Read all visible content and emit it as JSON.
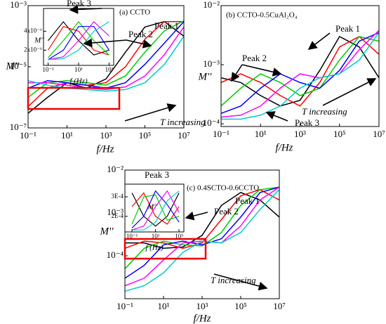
{
  "chart_data": [
    {
      "type": "line",
      "xscale": "log",
      "yscale": "log",
      "x_label": "f/Hz",
      "y_label": "M''",
      "annotations": [
        "(a) CCTO",
        "Peak 1",
        "Peak 2",
        "Peak 3",
        "T increasing"
      ],
      "x": [
        0.1,
        1,
        10,
        100,
        1000,
        10000,
        100000,
        1000000,
        10000000
      ],
      "xlim": [
        0.1,
        10000000
      ],
      "xticks": [
        {
          "value": 0.1,
          "label": "10⁻¹"
        },
        {
          "value": 10,
          "label": "10¹"
        },
        {
          "value": 1000,
          "label": "10³"
        },
        {
          "value": 100000,
          "label": "10⁵"
        },
        {
          "value": 10000000,
          "label": "10⁷"
        }
      ],
      "ylim": [
        1e-07,
        0.001
      ],
      "yticks": [
        {
          "value": 1e-07,
          "label": "10⁻⁷"
        },
        {
          "value": 1e-05,
          "label": "10⁻⁵"
        },
        {
          "value": 0.001,
          "label": "10⁻³"
        }
      ],
      "series": [
        {
          "color": "#000000",
          "values": [
            3e-07,
            1e-06,
            3e-06,
            2e-06,
            4e-06,
            3e-05,
            0.0002,
            0.0003,
            0.0001
          ]
        },
        {
          "color": "#ff0000",
          "values": [
            5e-07,
            2e-06,
            3e-06,
            2.5e-06,
            3e-06,
            1e-05,
            8e-05,
            0.0003,
            0.0003
          ]
        },
        {
          "color": "#00cc00",
          "values": [
            1e-06,
            3e-06,
            3.5e-06,
            3e-06,
            2.5e-06,
            5e-06,
            3e-05,
            0.00015,
            0.00032
          ]
        },
        {
          "color": "#0000ff",
          "values": [
            2e-06,
            3.5e-06,
            3e-06,
            2.5e-06,
            2e-06,
            3e-06,
            1.2e-05,
            6e-05,
            0.0003
          ]
        },
        {
          "color": "#ff00ff",
          "values": [
            3e-06,
            3e-06,
            2.5e-06,
            2e-06,
            1.8e-06,
            2.2e-06,
            5e-06,
            2.5e-05,
            0.0002
          ]
        },
        {
          "color": "#00cccc",
          "values": [
            3.5e-06,
            2.5e-06,
            2e-06,
            1.8e-06,
            1.6e-06,
            1.8e-06,
            3e-06,
            1.2e-05,
            0.0001
          ]
        }
      ]
    },
    {
      "type": "line",
      "xscale": "log",
      "yscale": "log",
      "x_label": "f/Hz",
      "y_label": "M''",
      "annotations": [
        "(b) CCTO-0.5CuAl₂O₄",
        "Peak 1",
        "Peak 2",
        "Peak 3",
        "T increasing"
      ],
      "x": [
        0.1,
        1,
        10,
        100,
        1000,
        10000,
        100000,
        1000000,
        10000000
      ],
      "xlim": [
        0.1,
        10000000
      ],
      "xticks": [
        {
          "value": 0.1,
          "label": "10⁻¹"
        },
        {
          "value": 10,
          "label": "10¹"
        },
        {
          "value": 1000,
          "label": "10³"
        },
        {
          "value": 100000,
          "label": "10⁵"
        },
        {
          "value": 10000000,
          "label": "10⁷"
        }
      ],
      "ylim": [
        9e-05,
        0.01
      ],
      "yticks": [
        {
          "value": 0.0001,
          "label": "10⁻⁴"
        },
        {
          "value": 0.001,
          "label": "10⁻³"
        },
        {
          "value": 0.01,
          "label": "10⁻²"
        }
      ],
      "series": [
        {
          "color": "#000000",
          "values": [
            0.0006,
            0.0005,
            0.0003,
            0.0002,
            0.00025,
            0.0008,
            0.003,
            0.002,
            0.0006
          ]
        },
        {
          "color": "#ff0000",
          "values": [
            0.0005,
            0.0007,
            0.0005,
            0.0003,
            0.0002,
            0.0005,
            0.002,
            0.003,
            0.0015
          ]
        },
        {
          "color": "#00cc00",
          "values": [
            0.0002,
            0.0004,
            0.0007,
            0.0005,
            0.0003,
            0.0004,
            0.0012,
            0.003,
            0.0025
          ]
        },
        {
          "color": "#0000ff",
          "values": [
            0.00015,
            0.0002,
            0.0004,
            0.0007,
            0.0005,
            0.0004,
            0.0008,
            0.0025,
            0.0035
          ]
        },
        {
          "color": "#ff00ff",
          "values": [
            0.00013,
            0.00014,
            0.0002,
            0.0004,
            0.0007,
            0.0006,
            0.0007,
            0.0018,
            0.0038
          ]
        },
        {
          "color": "#00cccc",
          "values": [
            0.00012,
            0.00012,
            0.00014,
            0.0002,
            0.0004,
            0.0006,
            0.0007,
            0.0012,
            0.0035
          ]
        }
      ]
    },
    {
      "type": "line",
      "xscale": "log",
      "yscale": "log",
      "x_label": "f/Hz",
      "y_label": "M''",
      "annotations": [
        "(c) 0.4SCTO-0.6CCTO",
        "Peak 1",
        "Peak 2",
        "Peak 3",
        "T increasing"
      ],
      "x": [
        0.1,
        1,
        10,
        100,
        1000,
        10000,
        100000,
        1000000,
        10000000
      ],
      "xlim": [
        0.1,
        10000000
      ],
      "xticks": [
        {
          "value": 0.1,
          "label": "10⁻¹"
        },
        {
          "value": 10,
          "label": "10¹"
        },
        {
          "value": 1000,
          "label": "10³"
        },
        {
          "value": 100000,
          "label": "10⁵"
        },
        {
          "value": 10000000,
          "label": "10⁷"
        }
      ],
      "ylim": [
        1e-05,
        0.01
      ],
      "yticks": [
        {
          "value": 0.0001,
          "label": "10⁻⁴"
        },
        {
          "value": 0.001,
          "label": "10⁻³"
        },
        {
          "value": 0.01,
          "label": "10⁻²"
        }
      ],
      "series": [
        {
          "color": "#000000",
          "values": [
            0.0002,
            0.0002,
            0.00015,
            0.00016,
            0.0003,
            0.0015,
            0.003,
            0.002,
            0.0008
          ]
        },
        {
          "color": "#ff0000",
          "values": [
            0.00015,
            0.00022,
            0.0002,
            0.00015,
            0.0002,
            0.0007,
            0.0025,
            0.0035,
            0.002
          ]
        },
        {
          "color": "#00cc00",
          "values": [
            5e-05,
            0.00015,
            0.00022,
            0.00018,
            0.00017,
            0.00035,
            0.0015,
            0.0035,
            0.004
          ]
        },
        {
          "color": "#0000ff",
          "values": [
            3e-05,
            6e-05,
            0.00018,
            0.00022,
            0.00018,
            0.00025,
            0.0008,
            0.003,
            0.004
          ]
        },
        {
          "color": "#ff00ff",
          "values": [
            2e-05,
            3e-05,
            8e-05,
            0.0002,
            0.00022,
            0.0002,
            0.0005,
            0.002,
            0.004
          ]
        },
        {
          "color": "#00cccc",
          "values": [
            1.5e-05,
            2e-05,
            4e-05,
            0.00012,
            0.00022,
            0.0002,
            0.00035,
            0.0012,
            0.0035
          ]
        }
      ]
    },
    {
      "type": "line",
      "xscale": "log",
      "yscale": "linear",
      "x_label": "f (Hz)",
      "y_label": "M''",
      "x": [
        0.1,
        1,
        10,
        100,
        1000
      ],
      "xlim": [
        0.05,
        2000
      ],
      "xticks": [
        {
          "value": 0.1,
          "label": "10⁻¹"
        },
        {
          "value": 10,
          "label": "10¹"
        },
        {
          "value": 1000,
          "label": "10³"
        }
      ],
      "ylim": [
        4e-07,
        6.4e-06
      ],
      "yticks": [
        {
          "value": 2e-06,
          "label": "2x10⁻⁶"
        },
        {
          "value": 4e-06,
          "label": "4x10⁻⁶"
        }
      ],
      "series": [
        {
          "color": "#000000",
          "values": [
            3e-06,
            5e-06,
            3e-06,
            1.5e-06,
            2e-06
          ]
        },
        {
          "color": "#ff0000",
          "values": [
            2e-06,
            4.5e-06,
            4e-06,
            2e-06,
            1.5e-06
          ]
        },
        {
          "color": "#00cc00",
          "values": [
            1.2e-06,
            3e-06,
            5e-06,
            3e-06,
            1.5e-06
          ]
        },
        {
          "color": "#0000ff",
          "values": [
            1e-06,
            2e-06,
            4.5e-06,
            4.5e-06,
            2e-06
          ]
        },
        {
          "color": "#ff00ff",
          "values": [
            1e-06,
            1.3e-06,
            3e-06,
            5e-06,
            3.5e-06
          ]
        },
        {
          "color": "#00cccc",
          "values": [
            1e-06,
            1.1e-06,
            2e-06,
            4e-06,
            5e-06
          ]
        }
      ]
    },
    {
      "type": "line",
      "xscale": "log",
      "yscale": "linear",
      "x_label": "f (Hz)",
      "y_label": "M''",
      "x": [
        0.1,
        1,
        10,
        100,
        1000
      ],
      "xlim": [
        0.025,
        2600
      ],
      "xticks": [
        {
          "value": 0.1,
          "label": "10⁻¹"
        },
        {
          "value": 10,
          "label": "10¹"
        },
        {
          "value": 1000,
          "label": "10³"
        }
      ],
      "ylim": [
        0.00012,
        0.000365
      ],
      "yticks": [
        {
          "value": 0.0002,
          "label": "2E-4"
        },
        {
          "value": 0.0003,
          "label": "3E-4"
        }
      ],
      "series": [
        {
          "color": "#000000",
          "values": [
            0.00032,
            0.0002,
            0.00015,
            0.0002,
            0.00032
          ]
        },
        {
          "color": "#ff0000",
          "values": [
            0.00025,
            0.00032,
            0.0002,
            0.00016,
            0.00025
          ]
        },
        {
          "color": "#00cc00",
          "values": [
            0.00016,
            0.0003,
            0.00031,
            0.00018,
            0.0002
          ]
        },
        {
          "color": "#0000ff",
          "values": [
            0.00014,
            0.0002,
            0.00033,
            0.00026,
            0.00017
          ]
        },
        {
          "color": "#ff00ff",
          "values": [
            0.00013,
            0.00015,
            0.00025,
            0.00033,
            0.00022
          ]
        },
        {
          "color": "#00cccc",
          "values": [
            0.00013,
            0.00013,
            0.00017,
            0.00028,
            0.00033
          ]
        }
      ]
    }
  ]
}
